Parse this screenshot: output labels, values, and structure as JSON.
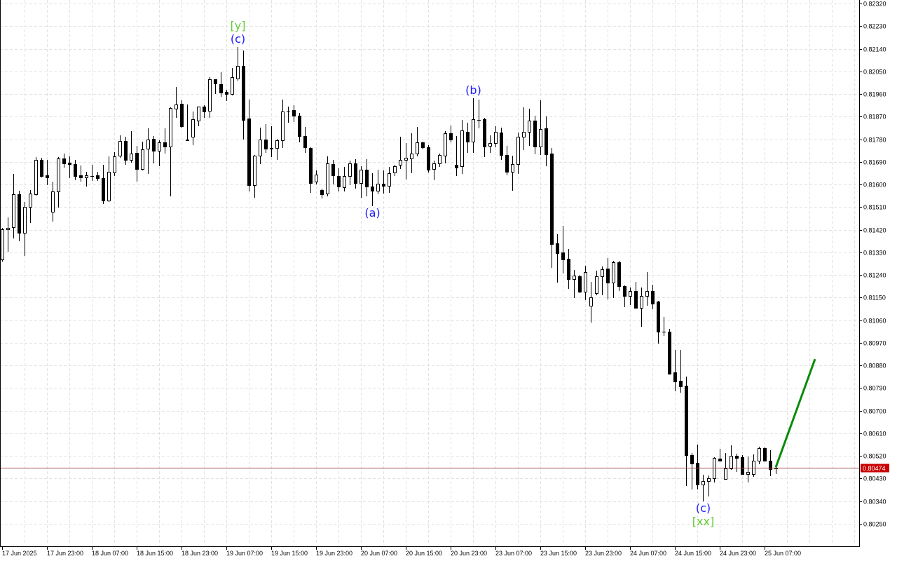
{
  "chart_data": {
    "type": "candlestick",
    "timeframe_bars": "hourly",
    "ylim": [
      0.80163,
      0.82334
    ],
    "grid": true,
    "colors": {
      "bull_body": "#ffffff",
      "bear_body": "#000000",
      "outline": "#000000",
      "grid": "#e2e2e2",
      "wave_label": "#1a1aff",
      "degree_label": "#66cc33",
      "forecast_line": "#0a8a0a",
      "price_line": "#a05050",
      "price_label_bg": "#c80000",
      "price_label_text": "#ffffff"
    },
    "y_ticks": [
      "0.82320",
      "0.82230",
      "0.82140",
      "0.82050",
      "0.81960",
      "0.81870",
      "0.81780",
      "0.81690",
      "0.81600",
      "0.81510",
      "0.81420",
      "0.81330",
      "0.81240",
      "0.81150",
      "0.81060",
      "0.80970",
      "0.80880",
      "0.80790",
      "0.80700",
      "0.80610",
      "0.80520",
      "0.80430",
      "0.80340",
      "0.80250"
    ],
    "x_ticks": [
      "17 Jun 2025",
      "17 Jun 23:00",
      "18 Jun 07:00",
      "18 Jun 15:00",
      "18 Jun 23:00",
      "19 Jun 07:00",
      "19 Jun 15:00",
      "19 Jun 23:00",
      "20 Jun 07:00",
      "20 Jun 15:00",
      "20 Jun 23:00",
      "23 Jun 07:00",
      "23 Jun 15:00",
      "23 Jun 23:00",
      "24 Jun 07:00",
      "24 Jun 15:00",
      "24 Jun 23:00",
      "25 Jun 07:00"
    ],
    "current_price": "0.80474",
    "ohlc": [
      [
        0.81302,
        0.81427,
        0.81296,
        0.81422
      ],
      [
        0.81422,
        0.81469,
        0.81335,
        0.81427
      ],
      [
        0.8143,
        0.81642,
        0.81388,
        0.81561
      ],
      [
        0.81561,
        0.81575,
        0.81377,
        0.81408
      ],
      [
        0.81408,
        0.81531,
        0.81318,
        0.81511
      ],
      [
        0.81511,
        0.81578,
        0.8145,
        0.81564
      ],
      [
        0.81561,
        0.81709,
        0.81558,
        0.81698
      ],
      [
        0.81698,
        0.81706,
        0.81631,
        0.81634
      ],
      [
        0.81637,
        0.81698,
        0.816,
        0.81628
      ],
      [
        0.81491,
        0.81611,
        0.81455,
        0.81572
      ],
      [
        0.81572,
        0.81709,
        0.81511,
        0.81704
      ],
      [
        0.81704,
        0.81723,
        0.8167,
        0.81684
      ],
      [
        0.81687,
        0.81712,
        0.81628,
        0.81681
      ],
      [
        0.81681,
        0.81698,
        0.8162,
        0.81634
      ],
      [
        0.81637,
        0.81676,
        0.81614,
        0.81628
      ],
      [
        0.81628,
        0.8165,
        0.81595,
        0.81637
      ],
      [
        0.81634,
        0.81678,
        0.81617,
        0.81634
      ],
      [
        0.81637,
        0.8165,
        0.81617,
        0.81625
      ],
      [
        0.81625,
        0.81678,
        0.81525,
        0.81536
      ],
      [
        0.81536,
        0.81712,
        0.81533,
        0.8165
      ],
      [
        0.81648,
        0.81729,
        0.81637,
        0.81712
      ],
      [
        0.81715,
        0.81796,
        0.81709,
        0.81773
      ],
      [
        0.81773,
        0.8179,
        0.81681,
        0.81698
      ],
      [
        0.81698,
        0.81812,
        0.8169,
        0.81723
      ],
      [
        0.81726,
        0.81754,
        0.81614,
        0.81662
      ],
      [
        0.81662,
        0.8177,
        0.81659,
        0.8174
      ],
      [
        0.81743,
        0.81823,
        0.81645,
        0.81779
      ],
      [
        0.81782,
        0.81793,
        0.81687,
        0.81734
      ],
      [
        0.81734,
        0.81776,
        0.81676,
        0.81768
      ],
      [
        0.81768,
        0.81823,
        0.81726,
        0.81751
      ],
      [
        0.81751,
        0.81907,
        0.81556,
        0.81904
      ],
      [
        0.81902,
        0.81988,
        0.81868,
        0.81918
      ],
      [
        0.81921,
        0.81935,
        0.81829,
        0.81832
      ],
      [
        0.81779,
        0.81918,
        0.81776,
        0.81776
      ],
      [
        0.8179,
        0.8189,
        0.81759,
        0.8186
      ],
      [
        0.81854,
        0.8191,
        0.81835,
        0.8191
      ],
      [
        0.8191,
        0.81916,
        0.81868,
        0.8189
      ],
      [
        0.81893,
        0.82027,
        0.81868,
        0.82019
      ],
      [
        0.82019,
        0.82019,
        0.81963,
        0.82002
      ],
      [
        0.81999,
        0.82047,
        0.81952,
        0.81966
      ],
      [
        0.81969,
        0.81977,
        0.81935,
        0.8196
      ],
      [
        0.8196,
        0.82063,
        0.81957,
        0.82027
      ],
      [
        0.82022,
        0.82147,
        0.82016,
        0.82072
      ],
      [
        0.82072,
        0.82133,
        0.81782,
        0.81857
      ],
      [
        0.81863,
        0.81938,
        0.81575,
        0.81597
      ],
      [
        0.81597,
        0.81717,
        0.8155,
        0.81715
      ],
      [
        0.81715,
        0.81826,
        0.81684,
        0.81779
      ],
      [
        0.81779,
        0.8184,
        0.81729,
        0.81743
      ],
      [
        0.81745,
        0.81832,
        0.81712,
        0.81743
      ],
      [
        0.81745,
        0.81782,
        0.81701,
        0.81776
      ],
      [
        0.81776,
        0.81938,
        0.81748,
        0.8189
      ],
      [
        0.8189,
        0.8191,
        0.81849,
        0.8189
      ],
      [
        0.81896,
        0.81916,
        0.81851,
        0.81874
      ],
      [
        0.81874,
        0.81885,
        0.8177,
        0.81793
      ],
      [
        0.81793,
        0.81829,
        0.81729,
        0.81748
      ],
      [
        0.81745,
        0.81748,
        0.8157,
        0.81606
      ],
      [
        0.81611,
        0.81656,
        0.81603,
        0.81639
      ],
      [
        0.81578,
        0.81584,
        0.81547,
        0.81561
      ],
      [
        0.81564,
        0.81712,
        0.81556,
        0.81684
      ],
      [
        0.81681,
        0.81698,
        0.81603,
        0.81637
      ],
      [
        0.81634,
        0.81664,
        0.81575,
        0.81592
      ],
      [
        0.81589,
        0.8167,
        0.81575,
        0.81634
      ],
      [
        0.81634,
        0.81695,
        0.816,
        0.81684
      ],
      [
        0.81684,
        0.81701,
        0.81586,
        0.81606
      ],
      [
        0.81606,
        0.81673,
        0.8155,
        0.81659
      ],
      [
        0.81659,
        0.81701,
        0.81556,
        0.81592
      ],
      [
        0.81592,
        0.81645,
        0.81517,
        0.81575
      ],
      [
        0.81575,
        0.81659,
        0.81564,
        0.81603
      ],
      [
        0.81603,
        0.81656,
        0.81567,
        0.81595
      ],
      [
        0.81595,
        0.8167,
        0.8157,
        0.81645
      ],
      [
        0.81648,
        0.81678,
        0.81637,
        0.81673
      ],
      [
        0.81678,
        0.8179,
        0.81664,
        0.81698
      ],
      [
        0.81698,
        0.81765,
        0.81622,
        0.81706
      ],
      [
        0.81704,
        0.81804,
        0.81648,
        0.81723
      ],
      [
        0.81723,
        0.81829,
        0.81715,
        0.81768
      ],
      [
        0.81768,
        0.8177,
        0.81743,
        0.81748
      ],
      [
        0.81748,
        0.81756,
        0.8165,
        0.81659
      ],
      [
        0.81662,
        0.81695,
        0.8162,
        0.81684
      ],
      [
        0.81684,
        0.81723,
        0.81673,
        0.81717
      ],
      [
        0.81715,
        0.81812,
        0.81687,
        0.81804
      ],
      [
        0.81804,
        0.81835,
        0.8177,
        0.81779
      ],
      [
        0.81678,
        0.81793,
        0.81637,
        0.81667
      ],
      [
        0.81673,
        0.81857,
        0.81645,
        0.81815
      ],
      [
        0.8181,
        0.81846,
        0.81729,
        0.8177
      ],
      [
        0.8177,
        0.81943,
        0.81729,
        0.8186
      ],
      [
        0.81857,
        0.81938,
        0.81826,
        0.81857
      ],
      [
        0.8186,
        0.81865,
        0.81712,
        0.81751
      ],
      [
        0.81754,
        0.81796,
        0.81729,
        0.81765
      ],
      [
        0.81765,
        0.81832,
        0.81751,
        0.8181
      ],
      [
        0.81807,
        0.81826,
        0.81701,
        0.81717
      ],
      [
        0.81717,
        0.81754,
        0.81639,
        0.8165
      ],
      [
        0.8165,
        0.81715,
        0.81578,
        0.81681
      ],
      [
        0.81681,
        0.81807,
        0.81645,
        0.8179
      ],
      [
        0.8179,
        0.81907,
        0.8174,
        0.8181
      ],
      [
        0.8181,
        0.81902,
        0.81756,
        0.81854
      ],
      [
        0.81854,
        0.81874,
        0.81723,
        0.81751
      ],
      [
        0.81751,
        0.81935,
        0.8172,
        0.81821
      ],
      [
        0.81823,
        0.81871,
        0.81676,
        0.8172
      ],
      [
        0.81723,
        0.81745,
        0.81271,
        0.81363
      ],
      [
        0.81366,
        0.81402,
        0.81212,
        0.81327
      ],
      [
        0.8133,
        0.81436,
        0.81249,
        0.81302
      ],
      [
        0.81305,
        0.81344,
        0.81187,
        0.81224
      ],
      [
        0.81224,
        0.8126,
        0.81151,
        0.81238
      ],
      [
        0.81235,
        0.8124,
        0.81171,
        0.81173
      ],
      [
        0.81173,
        0.81277,
        0.81143,
        0.81252
      ],
      [
        0.81118,
        0.81212,
        0.81053,
        0.81151
      ],
      [
        0.81168,
        0.81257,
        0.81162,
        0.81235
      ],
      [
        0.81235,
        0.81274,
        0.81162,
        0.81263
      ],
      [
        0.81265,
        0.81307,
        0.81146,
        0.8121
      ],
      [
        0.8121,
        0.81296,
        0.81151,
        0.81291
      ],
      [
        0.81291,
        0.81296,
        0.81179,
        0.81196
      ],
      [
        0.81196,
        0.81199,
        0.81115,
        0.81157
      ],
      [
        0.81157,
        0.8119,
        0.81123,
        0.81176
      ],
      [
        0.81176,
        0.81212,
        0.81109,
        0.81109
      ],
      [
        0.81109,
        0.8119,
        0.81037,
        0.81157
      ],
      [
        0.81157,
        0.81252,
        0.8112,
        0.81176
      ],
      [
        0.81176,
        0.81201,
        0.81106,
        0.81126
      ],
      [
        0.81134,
        0.81137,
        0.8097,
        0.81014
      ],
      [
        0.81014,
        0.81073,
        0.81,
        0.81014
      ],
      [
        0.81014,
        0.81026,
        0.80847,
        0.80847
      ],
      [
        0.80853,
        0.80942,
        0.8078,
        0.80816
      ],
      [
        0.80819,
        0.80942,
        0.80774,
        0.80797
      ],
      [
        0.808,
        0.80836,
        0.80403,
        0.80523
      ],
      [
        0.80523,
        0.80532,
        0.80389,
        0.8049
      ],
      [
        0.80493,
        0.80565,
        0.80389,
        0.80406
      ],
      [
        0.80406,
        0.80445,
        0.80342,
        0.8042
      ],
      [
        0.8042,
        0.80442,
        0.80361,
        0.80431
      ],
      [
        0.80431,
        0.80515,
        0.80417,
        0.80512
      ],
      [
        0.80509,
        0.80548,
        0.80501,
        0.80501
      ],
      [
        0.80428,
        0.80532,
        0.80428,
        0.8047
      ],
      [
        0.8047,
        0.80562,
        0.80467,
        0.8052
      ],
      [
        0.8052,
        0.80529,
        0.80459,
        0.80512
      ],
      [
        0.80515,
        0.80523,
        0.80448,
        0.80448
      ],
      [
        0.80448,
        0.80518,
        0.80417,
        0.80456
      ],
      [
        0.80448,
        0.80526,
        0.8044,
        0.80501
      ],
      [
        0.80501,
        0.80557,
        0.8049,
        0.80551
      ],
      [
        0.80551,
        0.80554,
        0.80501,
        0.80501
      ],
      [
        0.80501,
        0.80543,
        0.80442,
        0.80467
      ],
      [
        0.8047,
        0.80479,
        0.80451,
        0.80474
      ]
    ],
    "annotations": [
      {
        "text": "[y]",
        "bar": 42,
        "price": 0.82147,
        "position": "above",
        "offset_rows": 2,
        "style": "degree"
      },
      {
        "text": "(c)",
        "bar": 42,
        "price": 0.82147,
        "position": "above",
        "offset_rows": 1,
        "style": "wave"
      },
      {
        "text": "(a)",
        "bar": 66,
        "price": 0.81517,
        "position": "below",
        "offset_rows": 1,
        "style": "wave"
      },
      {
        "text": "(b)",
        "bar": 84,
        "price": 0.81943,
        "position": "above",
        "offset_rows": 1,
        "style": "wave"
      },
      {
        "text": "(c)",
        "bar": 125,
        "price": 0.80342,
        "position": "below",
        "offset_rows": 1,
        "style": "wave"
      },
      {
        "text": "[xx]",
        "bar": 125,
        "price": 0.80342,
        "position": "below",
        "offset_rows": 2,
        "style": "degree"
      }
    ],
    "forecast_line": {
      "from": {
        "bar": 138,
        "price": 0.80474
      },
      "to": {
        "bar": 145,
        "price": 0.80905
      }
    }
  }
}
